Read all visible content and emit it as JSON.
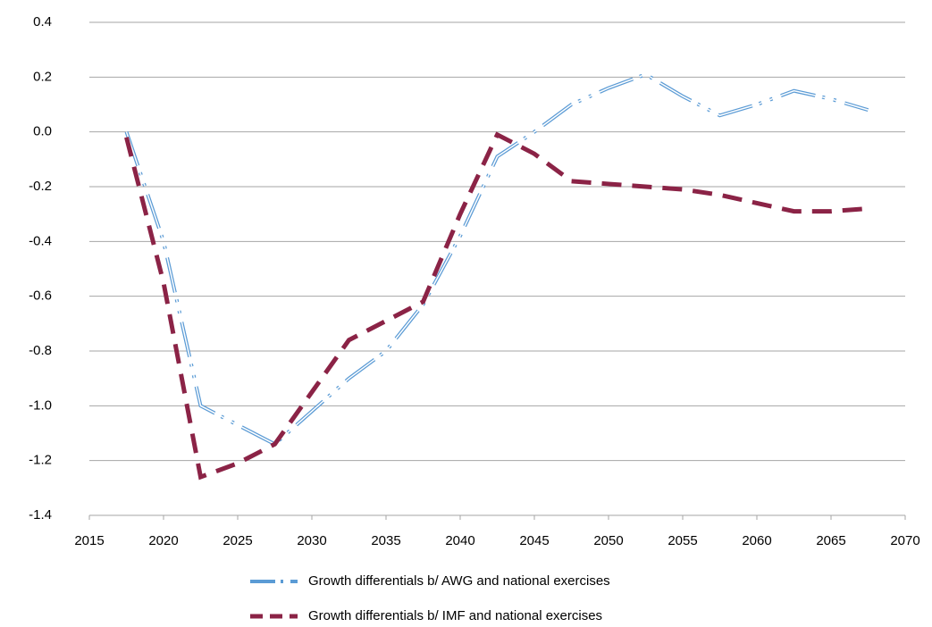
{
  "chart_data": {
    "type": "line",
    "x": [
      2017.5,
      2020,
      2022.5,
      2025,
      2027.5,
      2030,
      2032.5,
      2035,
      2037.5,
      2040,
      2042.5,
      2045,
      2047.5,
      2050,
      2052.5,
      2055,
      2057.5,
      2060,
      2062.5,
      2065,
      2067.5
    ],
    "series": [
      {
        "name": "Growth differentials b/ AWG and national exercises",
        "color": "#5b9bd5",
        "values": [
          0.0,
          -0.4,
          -1.0,
          -1.07,
          -1.14,
          -1.02,
          -0.9,
          -0.8,
          -0.63,
          -0.38,
          -0.09,
          0.0,
          0.1,
          0.16,
          0.21,
          0.13,
          0.06,
          0.1,
          0.15,
          0.12,
          0.08
        ]
      },
      {
        "name": "Growth differentials b/ IMF and national exercises",
        "color": "#8b2346",
        "values": [
          -0.02,
          -0.55,
          -1.26,
          -1.21,
          -1.14,
          -0.95,
          -0.76,
          -0.69,
          -0.62,
          -0.3,
          -0.01,
          -0.08,
          -0.18,
          -0.19,
          -0.2,
          -0.21,
          -0.23,
          -0.26,
          -0.29,
          -0.29,
          -0.28
        ]
      }
    ],
    "xlim": [
      2015,
      2070
    ],
    "xticks": [
      2015,
      2020,
      2025,
      2030,
      2035,
      2040,
      2045,
      2050,
      2055,
      2060,
      2065,
      2070
    ],
    "ylim": [
      -1.4,
      0.4
    ],
    "yticks": [
      {
        "value": -1.4,
        "label": "-1.4"
      },
      {
        "value": -1.2,
        "label": "-1.2"
      },
      {
        "value": -1.0,
        "label": "-1.0"
      },
      {
        "value": -0.8,
        "label": "-0.8"
      },
      {
        "value": -0.6,
        "label": "-0.6"
      },
      {
        "value": -0.4,
        "label": "-0.4"
      },
      {
        "value": -0.2,
        "label": "-0.2"
      },
      {
        "value": 0.0,
        "label": "0.0"
      },
      {
        "value": 0.2,
        "label": "0.2"
      },
      {
        "value": 0.4,
        "label": "0.4"
      }
    ],
    "grid": true
  }
}
